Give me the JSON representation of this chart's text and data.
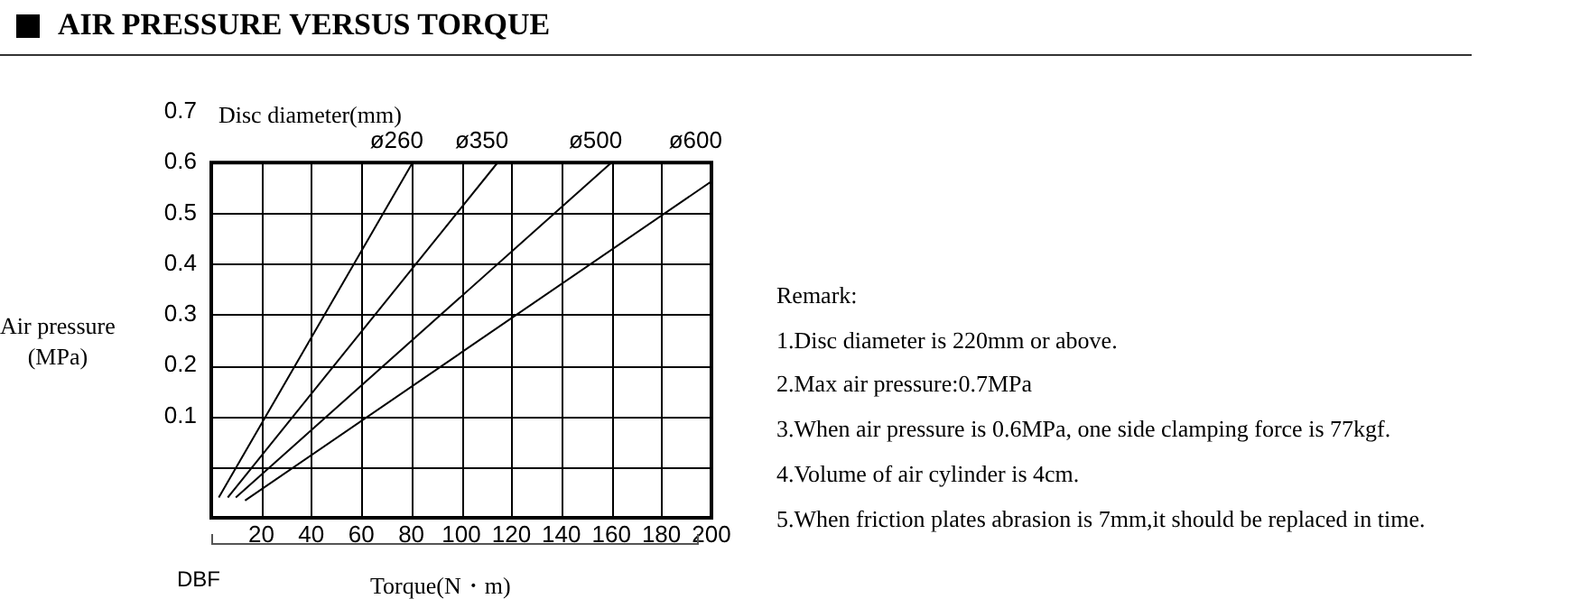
{
  "chart_data": {
    "type": "line",
    "title": "AIR PRESSURE VERSUS TORQUE",
    "xlabel": "Torque(N・m)",
    "ylabel": "Air pressure\n(MPa)",
    "legend_title": "Disc diameter(mm)",
    "series": [
      {
        "name": "ø260",
        "color": "#000000",
        "x": [
          3,
          80.5
        ],
        "values": [
          -0.06,
          0.6
        ]
      },
      {
        "name": "ø350",
        "color": "#000000",
        "x": [
          6.6,
          114.5
        ],
        "values": [
          -0.06,
          0.6
        ]
      },
      {
        "name": "ø500",
        "color": "#000000",
        "x": [
          9.8,
          160
        ],
        "values": [
          -0.06,
          0.6
        ]
      },
      {
        "name": "ø600",
        "color": "#000000",
        "x": [
          13.5,
          200
        ],
        "values": [
          -0.066,
          0.563
        ]
      }
    ],
    "xlim": [
      0,
      200
    ],
    "ylim": [
      -0.1,
      0.7
    ],
    "xticks": [
      20,
      40,
      60,
      80,
      100,
      120,
      140,
      160,
      180,
      200
    ],
    "yticks": [
      {
        "value": 0,
        "label": null
      },
      0.1,
      0.2,
      0.3,
      0.4,
      0.5,
      0.6,
      0.7
    ],
    "grid": true,
    "annotations": [
      "DBF",
      "Remark:",
      "1.Disc diameter is 220mm or above.",
      "2.Max air pressure:0.7MPa",
      "3.When air pressure is 0.6MPa, one side clamping force is 77kgf.",
      "4.Volume of air cylinder is 4cm.",
      "5.When friction plates abrasion is 7mm,it should be replaced in time."
    ]
  }
}
